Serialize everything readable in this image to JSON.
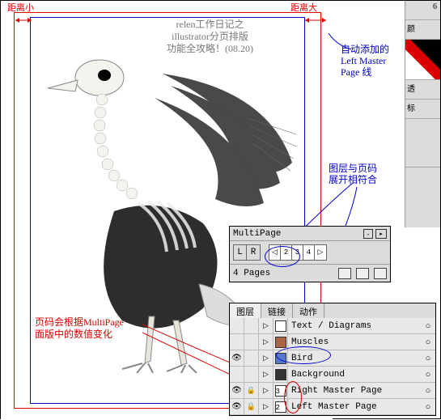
{
  "labels": {
    "dist_small": "距离小",
    "dist_large": "距离大",
    "title_l1": "relen工作日记之",
    "title_l2": "illustrator分页排版",
    "title_l3": "功能全攻略！(08.20)",
    "auto_add_l1": "自动添加的",
    "auto_add_l2": "Left Master",
    "auto_add_l3": "Page 线",
    "layer_match_l1": "图层与页码",
    "layer_match_l2": "展开相符合",
    "page_note_l1": "页码会根据MultiPage",
    "page_note_l2": "面版中的数值变化"
  },
  "multipage": {
    "title": "MultiPage",
    "lr_l": "L",
    "lr_r": "R",
    "nav_prev": "◁",
    "nav_2": "2",
    "nav_3": "3",
    "nav_4": "4",
    "nav_next": "▷",
    "count": "4 Pages"
  },
  "layers_panel": {
    "tab1": "图层",
    "tab2": "链接",
    "tab3": "动作"
  },
  "layers": [
    {
      "name": "Text / Diagrams",
      "eye": false,
      "lock": false,
      "sw": "#ffffff",
      "pageicon": ""
    },
    {
      "name": "Muscles",
      "eye": false,
      "lock": false,
      "sw": "#aa6644",
      "pageicon": ""
    },
    {
      "name": "Bird",
      "eye": true,
      "lock": false,
      "sw": "#5577cc",
      "pageicon": ""
    },
    {
      "name": "Background",
      "eye": false,
      "lock": false,
      "sw": "#333333",
      "pageicon": ""
    },
    {
      "name": "Right Master Page",
      "eye": true,
      "lock": true,
      "sw": "#ffffff",
      "pageicon": "3"
    },
    {
      "name": "Left Master Page",
      "eye": true,
      "lock": true,
      "sw": "#ffffff",
      "pageicon": "2"
    }
  ],
  "right_strip": {
    "t1": "颜",
    "t2": "",
    "t3": "透",
    "t4": "标",
    "num": "6"
  },
  "colors": {
    "annot_red": "#d00000",
    "annot_blue": "#0000cc",
    "panel_bg": "#dcdcdc"
  }
}
